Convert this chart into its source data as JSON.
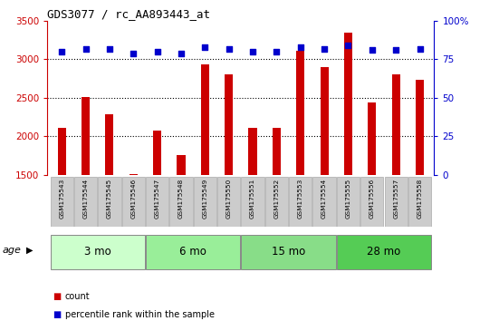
{
  "title": "GDS3077 / rc_AA893443_at",
  "samples": [
    "GSM175543",
    "GSM175544",
    "GSM175545",
    "GSM175546",
    "GSM175547",
    "GSM175548",
    "GSM175549",
    "GSM175550",
    "GSM175551",
    "GSM175552",
    "GSM175553",
    "GSM175554",
    "GSM175555",
    "GSM175556",
    "GSM175557",
    "GSM175558"
  ],
  "counts": [
    2110,
    2510,
    2290,
    1510,
    2080,
    1760,
    2940,
    2800,
    2110,
    2110,
    3110,
    2900,
    3350,
    2440,
    2810,
    2740
  ],
  "percentiles": [
    80,
    82,
    82,
    79,
    80,
    79,
    83,
    82,
    80,
    80,
    83,
    82,
    84,
    81,
    81,
    82
  ],
  "bar_color": "#cc0000",
  "dot_color": "#0000cc",
  "ylim_left": [
    1500,
    3500
  ],
  "ylim_right": [
    0,
    100
  ],
  "yticks_left": [
    1500,
    2000,
    2500,
    3000,
    3500
  ],
  "yticks_right": [
    0,
    25,
    50,
    75,
    100
  ],
  "grid_values": [
    2000,
    2500,
    3000
  ],
  "groups": [
    {
      "label": "3 mo",
      "indices": [
        0,
        1,
        2,
        3
      ],
      "color": "#ccffcc"
    },
    {
      "label": "6 mo",
      "indices": [
        4,
        5,
        6,
        7
      ],
      "color": "#99ee99"
    },
    {
      "label": "15 mo",
      "indices": [
        8,
        9,
        10,
        11
      ],
      "color": "#88dd88"
    },
    {
      "label": "28 mo",
      "indices": [
        12,
        13,
        14,
        15
      ],
      "color": "#55cc55"
    }
  ],
  "legend_items": [
    {
      "label": "count",
      "color": "#cc0000"
    },
    {
      "label": "percentile rank within the sample",
      "color": "#0000cc"
    }
  ],
  "age_label": "age",
  "bar_color_label": "#cc0000",
  "right_axis_color": "#0000cc",
  "plot_bg": "#ffffff",
  "xtick_box_color": "#cccccc",
  "xtick_box_edge": "#aaaaaa",
  "group_edge_color": "#888888",
  "title_font": "monospace",
  "title_fontsize": 9
}
